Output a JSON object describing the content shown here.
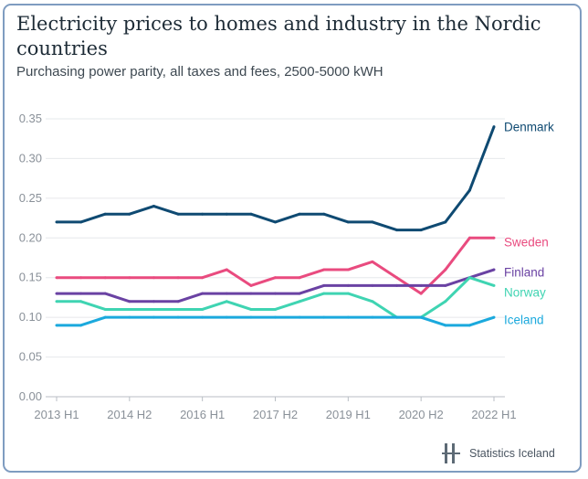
{
  "chart_data": {
    "type": "line",
    "title": "Electricity prices to homes and industry in the Nordic countries",
    "subtitle": "Purchasing power parity, all taxes and fees, 2500-5000 kWH",
    "xlabel": "",
    "ylabel": "",
    "categories": [
      "2013 H1",
      "2013 H2",
      "2014 H1",
      "2014 H2",
      "2015 H1",
      "2015 H2",
      "2016 H1",
      "2016 H2",
      "2017 H1",
      "2017 H2",
      "2018 H1",
      "2018 H2",
      "2019 H1",
      "2019 H2",
      "2020 H1",
      "2020 H2",
      "2021 H1",
      "2021 H2",
      "2022 H1"
    ],
    "x_tick_labels": [
      "2013 H1",
      "2014 H2",
      "2016 H1",
      "2017 H2",
      "2019 H1",
      "2020 H2",
      "2022 H1"
    ],
    "y_tick_labels": [
      "0.00",
      "0.05",
      "0.10",
      "0.15",
      "0.20",
      "0.25",
      "0.30",
      "0.35"
    ],
    "ylim": [
      0,
      0.35
    ],
    "grid": true,
    "legend": "direct labels at line ends (right)",
    "series": [
      {
        "name": "Denmark",
        "color": "#0f4a72",
        "values": [
          0.22,
          0.22,
          0.23,
          0.23,
          0.24,
          0.23,
          0.23,
          0.23,
          0.23,
          0.22,
          0.23,
          0.23,
          0.22,
          0.22,
          0.21,
          0.21,
          0.22,
          0.26,
          0.34
        ]
      },
      {
        "name": "Sweden",
        "color": "#e94b7f",
        "values": [
          0.15,
          0.15,
          0.15,
          0.15,
          0.15,
          0.15,
          0.15,
          0.16,
          0.14,
          0.15,
          0.15,
          0.16,
          0.16,
          0.17,
          0.15,
          0.13,
          0.16,
          0.2,
          0.2
        ]
      },
      {
        "name": "Finland",
        "color": "#6a42a3",
        "values": [
          0.13,
          0.13,
          0.13,
          0.12,
          0.12,
          0.12,
          0.13,
          0.13,
          0.13,
          0.13,
          0.13,
          0.14,
          0.14,
          0.14,
          0.14,
          0.14,
          0.14,
          0.15,
          0.16
        ]
      },
      {
        "name": "Norway",
        "color": "#3fd4b2",
        "values": [
          0.12,
          0.12,
          0.11,
          0.11,
          0.11,
          0.11,
          0.11,
          0.12,
          0.11,
          0.11,
          0.12,
          0.13,
          0.13,
          0.12,
          0.1,
          0.1,
          0.12,
          0.15,
          0.14
        ]
      },
      {
        "name": "Iceland",
        "color": "#1ba9dd",
        "values": [
          0.09,
          0.09,
          0.1,
          0.1,
          0.1,
          0.1,
          0.1,
          0.1,
          0.1,
          0.1,
          0.1,
          0.1,
          0.1,
          0.1,
          0.1,
          0.1,
          0.09,
          0.09,
          0.1
        ]
      }
    ]
  },
  "branding": {
    "logo_text": "Statistics Iceland"
  }
}
